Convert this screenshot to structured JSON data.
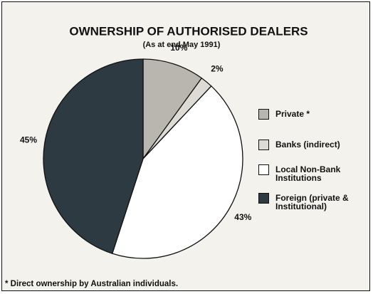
{
  "chart_data": {
    "type": "pie",
    "title": "OWNERSHIP OF AUTHORISED DEALERS",
    "subtitle": "(As at end May 1991)",
    "footnote": "* Direct ownership by Australian individuals.",
    "series": [
      {
        "name": "Private *",
        "color": "#b9b6b0",
        "values": [
          10
        ],
        "value_labels": [
          "10%"
        ]
      },
      {
        "name": "Banks (indirect)",
        "color": "#dedbd4",
        "values": [
          2
        ],
        "value_labels": [
          "2%"
        ]
      },
      {
        "name": "Local Non-Bank Institutions",
        "color": "#ffffff",
        "values": [
          43
        ],
        "value_labels": [
          "43%"
        ]
      },
      {
        "name": "Foreign (private & Institutional)",
        "color": "#2e3a42",
        "values": [
          45
        ],
        "value_labels": [
          "45%"
        ]
      }
    ]
  }
}
